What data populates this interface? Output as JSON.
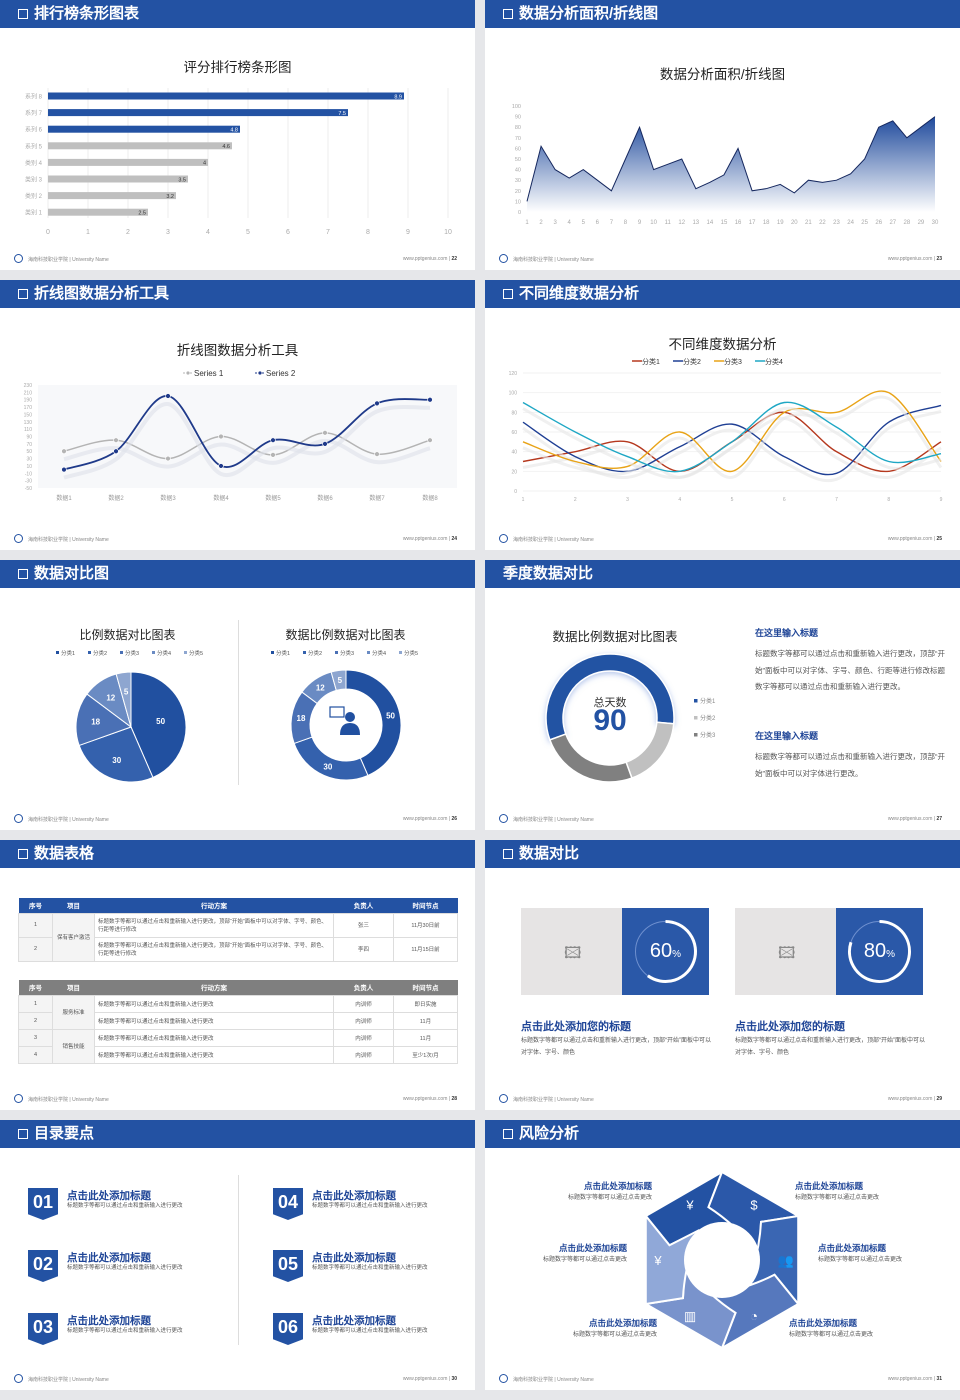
{
  "footer": {
    "org": "海南科技职业学院 | University Name",
    "url": "www.pptgenius.com"
  },
  "slides": [
    {
      "title": "排行榜条形图表",
      "page": "22"
    },
    {
      "title": "数据分析面积/折线图",
      "page": "23"
    },
    {
      "title": "折线图数据分析工具",
      "page": "24"
    },
    {
      "title": "不同维度数据分析",
      "page": "25"
    },
    {
      "title": "数据对比图",
      "page": "26"
    },
    {
      "title": "季度数据对比",
      "page": "27"
    },
    {
      "title": "数据表格",
      "page": "28"
    },
    {
      "title": "数据对比",
      "page": "29"
    },
    {
      "title": "目录要点",
      "page": "30"
    },
    {
      "title": "风险分析",
      "page": "31"
    }
  ],
  "colors": {
    "brand": "#2352a3",
    "gray": "#bfbfbf"
  },
  "chart_data": [
    {
      "type": "bar",
      "title": "评分排行榜条形图",
      "orientation": "horizontal",
      "categories": [
        "系列 8",
        "系列 7",
        "系列 6",
        "系列 5",
        "类别 4",
        "类别 3",
        "类别 2",
        "类别 1"
      ],
      "values": [
        8.9,
        7.5,
        4.8,
        4.6,
        4,
        3.5,
        3.2,
        2.5
      ],
      "labels": [
        "8.9",
        "7.5",
        "4.8",
        "4.6",
        "4",
        "3.5",
        "3.2",
        "2.5"
      ],
      "highlight_colors": [
        "#2352a3",
        "#2352a3",
        "#2352a3",
        "#bfbfbf",
        "#bfbfbf",
        "#bfbfbf",
        "#bfbfbf",
        "#bfbfbf"
      ],
      "xlim": [
        0,
        10
      ],
      "xticks": [
        "0",
        "1",
        "2",
        "3",
        "4",
        "5",
        "6",
        "7",
        "8",
        "9",
        "10"
      ],
      "grid": true
    },
    {
      "type": "area",
      "title": "数据分析面积/折线图",
      "x": [
        1,
        2,
        3,
        4,
        5,
        6,
        7,
        8,
        9,
        10,
        11,
        12,
        13,
        14,
        15,
        16,
        17,
        18,
        19,
        20,
        21,
        22,
        23,
        24,
        25,
        26,
        27,
        28,
        29,
        30
      ],
      "values": [
        10,
        62,
        40,
        32,
        40,
        30,
        20,
        50,
        80,
        40,
        45,
        50,
        22,
        28,
        35,
        60,
        20,
        22,
        26,
        18,
        30,
        28,
        30,
        36,
        50,
        80,
        86,
        70,
        80,
        90
      ],
      "ylim": [
        0,
        100
      ],
      "yticks": [
        "0",
        "10",
        "20",
        "30",
        "40",
        "50",
        "60",
        "70",
        "80",
        "90",
        "100"
      ]
    },
    {
      "type": "line",
      "title": "折线图数据分析工具",
      "smooth": true,
      "categories": [
        "数据1",
        "数据2",
        "数据3",
        "数据4",
        "数据5",
        "数据6",
        "数据7",
        "数据8"
      ],
      "series": [
        {
          "name": "Series 1",
          "color": "#b4b4b4",
          "values": [
            50,
            80,
            30,
            90,
            40,
            100,
            42,
            80
          ]
        },
        {
          "name": "Series 2",
          "color": "#1f3a8a",
          "values": [
            0,
            50,
            200,
            10,
            80,
            70,
            180,
            190
          ]
        }
      ],
      "ylim": [
        -50,
        230
      ],
      "yticks": [
        "230",
        "210",
        "190",
        "170",
        "150",
        "130",
        "110",
        "90",
        "70",
        "50",
        "30",
        "10",
        "-10",
        "-30",
        "-50"
      ],
      "legend": "top"
    },
    {
      "type": "line",
      "title": "不同维度数据分析",
      "smooth": true,
      "categories": [
        "1",
        "2",
        "3",
        "4",
        "5",
        "6",
        "7",
        "8",
        "9"
      ],
      "series": [
        {
          "name": "分类1",
          "color": "#b5381e",
          "values": [
            30,
            40,
            50,
            20,
            50,
            80,
            40,
            20,
            50
          ]
        },
        {
          "name": "分类2",
          "color": "#1f3f94",
          "values": [
            70,
            35,
            20,
            45,
            68,
            35,
            18,
            70,
            87
          ]
        },
        {
          "name": "分类3",
          "color": "#e8a317",
          "values": [
            50,
            30,
            25,
            60,
            20,
            80,
            80,
            100,
            30
          ]
        },
        {
          "name": "分类4",
          "color": "#1fa7c4",
          "values": [
            90,
            60,
            35,
            20,
            50,
            90,
            65,
            30,
            38
          ]
        }
      ],
      "ylim": [
        0,
        120
      ],
      "yticks": [
        "0",
        "20",
        "40",
        "60",
        "80",
        "100",
        "120"
      ],
      "legend": "top"
    },
    {
      "type": "pie",
      "title": "比例数据对比图表",
      "categories": [
        "分类1",
        "分类2",
        "分类3",
        "分类4",
        "分类5"
      ],
      "values": [
        50,
        30,
        18,
        12,
        5
      ],
      "colors": [
        "#2150a0",
        "#3461ad",
        "#4a70b5",
        "#6a8bc3",
        "#8ea6d0"
      ],
      "legend": "top"
    },
    {
      "type": "pie",
      "variant": "donut",
      "title": "数据比例数据对比图表",
      "categories": [
        "分类1",
        "分类2",
        "分类3",
        "分类4",
        "分类5"
      ],
      "values": [
        50,
        30,
        18,
        12,
        5
      ],
      "colors": [
        "#2150a0",
        "#3461ad",
        "#4a70b5",
        "#6a8bc3",
        "#8ea6d0"
      ],
      "legend": "top",
      "center_icon": "customer-service-icon"
    },
    {
      "type": "pie",
      "variant": "donut",
      "title": "数据比例数据对比图表",
      "categories": [
        "分类1",
        "分类2",
        "分类3"
      ],
      "values": [
        57,
        18,
        25
      ],
      "colors": [
        "#2352a3",
        "#c0c0c0",
        "#808080"
      ],
      "legend": "right",
      "center_label": "总天数",
      "center_value": "90"
    }
  ],
  "quarterly": {
    "blocks": [
      {
        "title": "在这里输入标题",
        "text": "标题数字等都可以通过点击和重新输入进行更改，顶部“开始”面板中可以对字体、字号、颜色、行距等进行修改标题数字等都可以通过点击和重新输入进行更改。"
      },
      {
        "title": "在这里输入标题",
        "text": "标题数字等都可以通过点击和重新输入进行更改，顶部“开始”面板中可以对字体进行更改。"
      }
    ]
  },
  "tables": {
    "headers": [
      "序号",
      "项目",
      "行动方案",
      "负责人",
      "时间节点"
    ],
    "table1": {
      "group": "保有客户激活",
      "rows": [
        {
          "no": "1",
          "plan": "标题数字等都可以通过点击和重新输入进行更改，顶部“开始”面板中可以对字体、字号、颜色、行距等进行修改",
          "owner": "张三",
          "time": "11月30日前"
        },
        {
          "no": "2",
          "plan": "标题数字等都可以通过点击和重新输入进行更改，顶部“开始”面板中可以对字体、字号、颜色、行距等进行修改",
          "owner": "李四",
          "time": "11月15日前"
        }
      ]
    },
    "table2": {
      "groups": [
        "服务标准",
        "销售技能"
      ],
      "rows": [
        {
          "no": "1",
          "plan": "标题数字等都可以通过点击和重新输入进行更改",
          "owner": "内训师",
          "time": "即日实施"
        },
        {
          "no": "2",
          "plan": "标题数字等都可以通过点击和重新输入进行更改",
          "owner": "内训师",
          "time": "11月"
        },
        {
          "no": "3",
          "plan": "标题数字等都可以通过点击和重新输入进行更改",
          "owner": "内训师",
          "time": "11月"
        },
        {
          "no": "4",
          "plan": "标题数字等都可以通过点击和重新输入进行更改",
          "owner": "内训师",
          "time": "至少1次/月"
        }
      ]
    }
  },
  "compare": {
    "cards": [
      {
        "percent": 60,
        "value": "60",
        "unit": "%",
        "title": "点击此处添加您的标题",
        "text": "标题数字等都可以通过点击和重新输入进行更改，顶部“开始”面板中可以对字体、字号、颜色",
        "image_icon": "image-placeholder-icon"
      },
      {
        "percent": 80,
        "value": "80",
        "unit": "%",
        "title": "点击此处添加您的标题",
        "text": "标题数字等都可以通过点击和重新输入进行更改，顶部“开始”面板中可以对字体、字号、颜色",
        "image_icon": "image-placeholder-icon"
      }
    ]
  },
  "toc": {
    "items": [
      {
        "num": "01",
        "title": "点击此处添加标题",
        "text": "标题数字等都可以通过点击和重新输入进行更改"
      },
      {
        "num": "02",
        "title": "点击此处添加标题",
        "text": "标题数字等都可以通过点击和重新输入进行更改"
      },
      {
        "num": "03",
        "title": "点击此处添加标题",
        "text": "标题数字等都可以通过点击和重新输入进行更改"
      },
      {
        "num": "04",
        "title": "点击此处添加标题",
        "text": "标题数字等都可以通过点击和重新输入进行更改"
      },
      {
        "num": "05",
        "title": "点击此处添加标题",
        "text": "标题数字等都可以通过点击和重新输入进行更改"
      },
      {
        "num": "06",
        "title": "点击此处添加标题",
        "text": "标题数字等都可以通过点击和重新输入进行更改"
      }
    ]
  },
  "risk": {
    "items": [
      {
        "title": "点击此处添加标题",
        "text": "标题数字等都可以通过点击更改",
        "icon": "money-bag-icon"
      },
      {
        "title": "点击此处添加标题",
        "text": "标题数字等都可以通过点击更改",
        "icon": "coins-icon"
      },
      {
        "title": "点击此处添加标题",
        "text": "标题数字等都可以通过点击更改",
        "icon": "hand-money-icon"
      },
      {
        "title": "点击此处添加标题",
        "text": "标题数字等都可以通过点击更改",
        "icon": "users-icon"
      },
      {
        "title": "点击此处添加标题",
        "text": "标题数字等都可以通过点击更改",
        "icon": "building-icon"
      },
      {
        "title": "点击此处添加标题",
        "text": "标题数字等都可以通过点击更改",
        "icon": "pie-chart-icon"
      }
    ]
  }
}
